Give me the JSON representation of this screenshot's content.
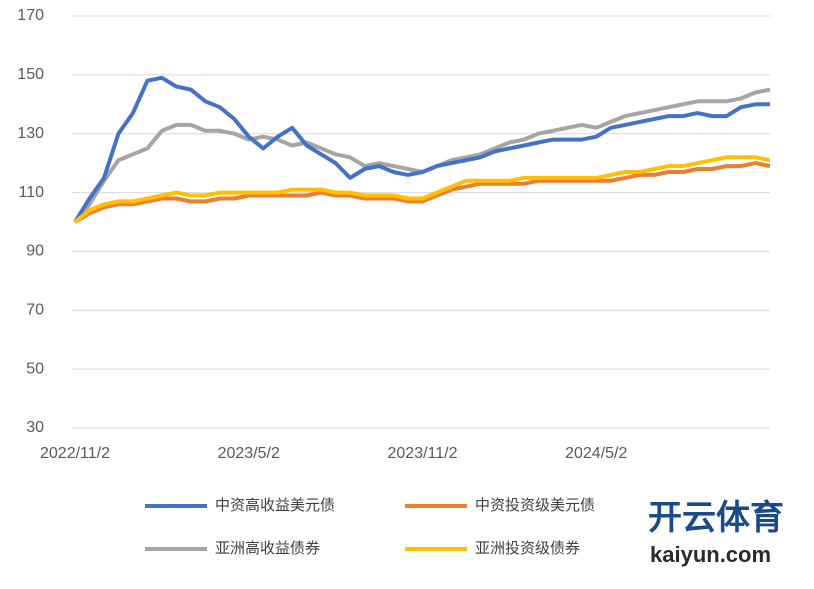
{
  "chart_data": {
    "type": "line",
    "categories": [
      "2022/11/2",
      null,
      null,
      null,
      null,
      null,
      null,
      null,
      null,
      null,
      null,
      null,
      "2023/5/2",
      null,
      null,
      null,
      null,
      null,
      null,
      null,
      null,
      null,
      null,
      null,
      "2023/11/2",
      null,
      null,
      null,
      null,
      null,
      null,
      null,
      null,
      null,
      null,
      null,
      "2024/5/2",
      null,
      null,
      null,
      null,
      null,
      null,
      null,
      null,
      null,
      null,
      null,
      null
    ],
    "series": [
      {
        "name": "中资高收益美元债",
        "color": "#4472c4",
        "values": [
          100,
          108,
          115,
          130,
          137,
          148,
          149,
          146,
          145,
          141,
          139,
          135,
          129,
          125,
          129,
          132,
          126,
          123,
          120,
          115,
          118,
          119,
          117,
          116,
          117,
          119,
          120,
          121,
          122,
          124,
          125,
          126,
          127,
          128,
          128,
          128,
          129,
          132,
          133,
          134,
          135,
          136,
          136,
          137,
          136,
          136,
          139,
          140,
          140
        ]
      },
      {
        "name": "中资投资级美元债",
        "color": "#ed7d31",
        "values": [
          100,
          103,
          105,
          106,
          106,
          107,
          108,
          108,
          107,
          107,
          108,
          108,
          109,
          109,
          109,
          109,
          109,
          110,
          109,
          109,
          108,
          108,
          108,
          107,
          107,
          109,
          111,
          112,
          113,
          113,
          113,
          113,
          114,
          114,
          114,
          114,
          114,
          114,
          115,
          116,
          116,
          117,
          117,
          118,
          118,
          119,
          119,
          120,
          119
        ]
      },
      {
        "name": "亚洲高收益债券",
        "color": "#a5a5a5",
        "values": [
          100,
          106,
          114,
          121,
          123,
          125,
          131,
          133,
          133,
          131,
          131,
          130,
          128,
          129,
          128,
          126,
          127,
          125,
          123,
          122,
          119,
          120,
          119,
          118,
          117,
          119,
          121,
          122,
          123,
          125,
          127,
          128,
          130,
          131,
          132,
          133,
          132,
          134,
          136,
          137,
          138,
          139,
          140,
          141,
          141,
          141,
          142,
          144,
          145
        ]
      },
      {
        "name": "亚洲投资级债券",
        "color": "#ffc000",
        "values": [
          100,
          104,
          106,
          107,
          107,
          108,
          109,
          110,
          109,
          109,
          110,
          110,
          110,
          110,
          110,
          111,
          111,
          111,
          110,
          110,
          109,
          109,
          109,
          108,
          108,
          110,
          112,
          114,
          114,
          114,
          114,
          115,
          115,
          115,
          115,
          115,
          115,
          116,
          117,
          117,
          118,
          119,
          119,
          120,
          121,
          122,
          122,
          122,
          121
        ]
      }
    ],
    "ylim": [
      30,
      170
    ],
    "yticks": [
      30,
      50,
      70,
      90,
      110,
      130,
      150,
      170
    ],
    "grid": true,
    "legend": "bottom",
    "watermark": [
      "开云体育",
      "kaiyun.com"
    ]
  }
}
